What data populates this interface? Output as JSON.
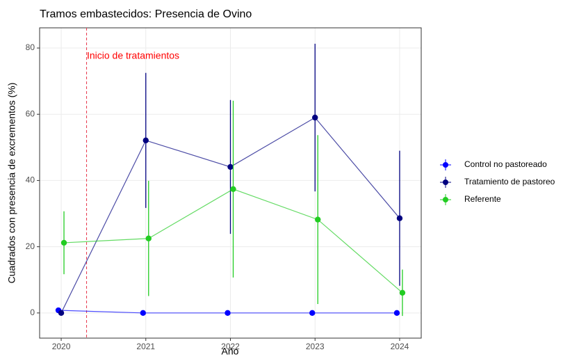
{
  "chart_data": {
    "type": "line",
    "title": "Tramos embastecidos: Presencia de Ovino",
    "xlabel": "Año",
    "ylabel": "Cuadrados con presencia de excrementos (%)",
    "x": [
      2020,
      2021,
      2022,
      2023,
      2024
    ],
    "series": [
      {
        "name": "Control no pastoreado",
        "color": "#0000ff",
        "values": [
          0.8,
          0,
          0,
          0,
          0
        ],
        "errors": [
          0.8,
          0,
          0,
          0,
          0
        ]
      },
      {
        "name": "Tratamiento de pastoreo",
        "color": "#000080",
        "values": [
          0,
          52.1,
          44.1,
          59.0,
          28.6
        ],
        "errors": [
          0,
          20.4,
          20.2,
          22.3,
          20.4
        ]
      },
      {
        "name": "Referente",
        "color": "#22cc22",
        "values": [
          21.2,
          22.5,
          37.4,
          28.2,
          6.1
        ],
        "errors": [
          9.5,
          17.4,
          26.7,
          25.5,
          7
        ]
      }
    ],
    "xlim": [
      2019.745,
      2024.255
    ],
    "ylim": [
      -7.6,
      86.1
    ],
    "xticks": [
      2020,
      2021,
      2022,
      2023,
      2024
    ],
    "yticks": [
      0,
      20,
      40,
      60,
      80
    ],
    "grid": true,
    "legend": "right",
    "vline": {
      "x": 2020.3,
      "color": "#e8344a"
    },
    "annotation": {
      "text": "Inicio de tratamientos",
      "x": 2020.85,
      "y": 77.5,
      "color": "#ff0000"
    }
  }
}
